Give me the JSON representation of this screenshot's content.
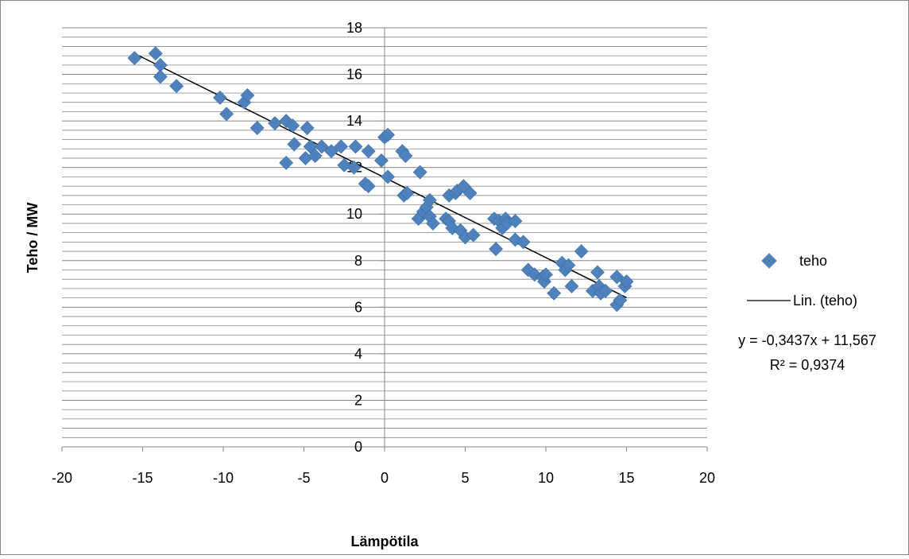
{
  "chart_data": {
    "type": "scatter",
    "title": "",
    "xlabel": "Lämpötila",
    "ylabel": "Teho / MW",
    "xlim": [
      -20,
      20
    ],
    "ylim": [
      0,
      18
    ],
    "x_ticks": [
      "-20",
      "-15",
      "-10",
      "-5",
      "0",
      "5",
      "10",
      "15",
      "20"
    ],
    "y_ticks": [
      "0",
      "2",
      "4",
      "6",
      "8",
      "10",
      "12",
      "14",
      "16",
      "18"
    ],
    "grid": "horizontal major and minor",
    "legend_position": "right",
    "colors": {
      "marker": "#4f81bd",
      "trendline": "#000000",
      "grid": "#868686"
    },
    "series": [
      {
        "name": "teho",
        "marker": "diamond",
        "points": [
          [
            -15.5,
            16.7
          ],
          [
            -14.2,
            16.9
          ],
          [
            -13.9,
            16.4
          ],
          [
            -13.9,
            15.9
          ],
          [
            -12.9,
            15.5
          ],
          [
            -10.2,
            15.0
          ],
          [
            -9.8,
            14.3
          ],
          [
            -8.7,
            14.8
          ],
          [
            -8.5,
            15.1
          ],
          [
            -7.9,
            13.7
          ],
          [
            -6.8,
            13.9
          ],
          [
            -6.1,
            14.0
          ],
          [
            -5.7,
            13.8
          ],
          [
            -6.1,
            12.2
          ],
          [
            -5.6,
            13.0
          ],
          [
            -4.8,
            13.7
          ],
          [
            -4.9,
            12.4
          ],
          [
            -4.6,
            12.9
          ],
          [
            -4.3,
            12.5
          ],
          [
            -3.9,
            12.9
          ],
          [
            -3.3,
            12.7
          ],
          [
            -2.7,
            12.9
          ],
          [
            -2.5,
            12.1
          ],
          [
            -1.9,
            12.0
          ],
          [
            -1.8,
            12.9
          ],
          [
            -1.2,
            11.3
          ],
          [
            -1.0,
            11.2
          ],
          [
            -1.0,
            12.7
          ],
          [
            -0.2,
            12.3
          ],
          [
            0.0,
            13.3
          ],
          [
            0.2,
            13.4
          ],
          [
            0.2,
            11.6
          ],
          [
            1.1,
            12.7
          ],
          [
            1.3,
            12.5
          ],
          [
            1.2,
            10.8
          ],
          [
            1.4,
            10.9
          ],
          [
            2.1,
            9.8
          ],
          [
            2.2,
            11.8
          ],
          [
            2.4,
            10.1
          ],
          [
            2.6,
            10.3
          ],
          [
            2.8,
            10.6
          ],
          [
            2.8,
            9.9
          ],
          [
            3.0,
            9.6
          ],
          [
            3.8,
            9.8
          ],
          [
            4.0,
            9.7
          ],
          [
            4.0,
            10.8
          ],
          [
            4.2,
            9.4
          ],
          [
            4.4,
            10.9
          ],
          [
            4.5,
            11.0
          ],
          [
            4.7,
            9.3
          ],
          [
            4.9,
            11.2
          ],
          [
            5.0,
            9.0
          ],
          [
            5.3,
            10.9
          ],
          [
            5.5,
            9.1
          ],
          [
            6.8,
            9.8
          ],
          [
            6.9,
            8.5
          ],
          [
            7.1,
            9.7
          ],
          [
            7.3,
            9.4
          ],
          [
            7.5,
            9.8
          ],
          [
            7.6,
            9.6
          ],
          [
            8.1,
            8.9
          ],
          [
            8.1,
            9.7
          ],
          [
            8.6,
            8.8
          ],
          [
            8.9,
            7.6
          ],
          [
            9.3,
            7.4
          ],
          [
            9.8,
            7.3
          ],
          [
            9.9,
            7.1
          ],
          [
            10.0,
            7.4
          ],
          [
            10.5,
            6.6
          ],
          [
            11.0,
            7.9
          ],
          [
            11.2,
            7.6
          ],
          [
            11.4,
            7.8
          ],
          [
            11.6,
            6.9
          ],
          [
            12.2,
            8.4
          ],
          [
            12.9,
            6.7
          ],
          [
            13.2,
            7.5
          ],
          [
            13.3,
            6.9
          ],
          [
            13.4,
            6.6
          ],
          [
            13.7,
            6.7
          ],
          [
            14.4,
            7.3
          ],
          [
            14.4,
            6.1
          ],
          [
            14.6,
            6.3
          ],
          [
            14.9,
            6.9
          ],
          [
            15.0,
            7.1
          ]
        ]
      }
    ],
    "trendline": {
      "name": "Lin. (teho)",
      "type": "linear",
      "slope": -0.3437,
      "intercept": 11.567,
      "x_range": [
        -15.5,
        15.0
      ],
      "equation": "y = -0,3437x + 11,567",
      "r_squared": "R² = 0,9374"
    }
  }
}
